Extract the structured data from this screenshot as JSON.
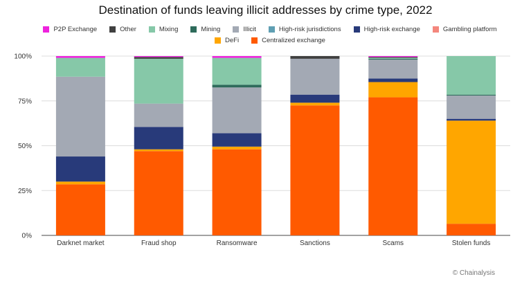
{
  "chart_data": {
    "type": "bar",
    "stacked": true,
    "title": "Destination of funds leaving illicit addresses by crime type, 2022",
    "categories": [
      "Darknet market",
      "Fraud shop",
      "Ransomware",
      "Sanctions",
      "Scams",
      "Stolen funds"
    ],
    "ylim": [
      0,
      100
    ],
    "yticks": [
      0,
      25,
      50,
      75,
      100
    ],
    "ytick_labels": [
      "0%",
      "25%",
      "50%",
      "75%",
      "100%"
    ],
    "grid": "horizontal",
    "legend_position": "top",
    "series": [
      {
        "name": "Centralized exchange",
        "color": "#ff5a00",
        "values": [
          28.5,
          47,
          48,
          72.5,
          77,
          6.5
        ]
      },
      {
        "name": "DeFi",
        "color": "#ffa600",
        "values": [
          1.5,
          1,
          1.5,
          1.5,
          8.5,
          57.5
        ]
      },
      {
        "name": "Gambling platform",
        "color": "#f4877d",
        "values": [
          0,
          0,
          0,
          0,
          0,
          0
        ]
      },
      {
        "name": "High-risk exchange",
        "color": "#283a7a",
        "values": [
          14,
          12.5,
          7.5,
          4.5,
          2,
          1
        ]
      },
      {
        "name": "High-risk jurisdictions",
        "color": "#5f9fb3",
        "values": [
          0,
          0,
          0,
          0,
          0,
          0
        ]
      },
      {
        "name": "Illicit",
        "color": "#a3a9b4",
        "values": [
          44.5,
          13,
          25.5,
          20,
          10.5,
          13
        ]
      },
      {
        "name": "Mining",
        "color": "#2e6b5b",
        "values": [
          0,
          0,
          1.5,
          0,
          0.5,
          0.5
        ]
      },
      {
        "name": "Mixing",
        "color": "#86c8a8",
        "values": [
          10.5,
          25,
          15,
          0,
          0.5,
          21.5
        ]
      },
      {
        "name": "Other",
        "color": "#404040",
        "values": [
          0,
          1,
          0,
          1.5,
          0.5,
          0
        ]
      },
      {
        "name": "P2P Exchange",
        "color": "#ee22dd",
        "values": [
          1,
          0.5,
          1,
          0,
          0.5,
          0
        ]
      }
    ],
    "legend_order": [
      "P2P Exchange",
      "Other",
      "Mixing",
      "Mining",
      "Illicit",
      "High-risk jurisdictions",
      "High-risk exchange",
      "Gambling platform",
      "DeFi",
      "Centralized exchange"
    ]
  },
  "credit": "© Chainalysis"
}
